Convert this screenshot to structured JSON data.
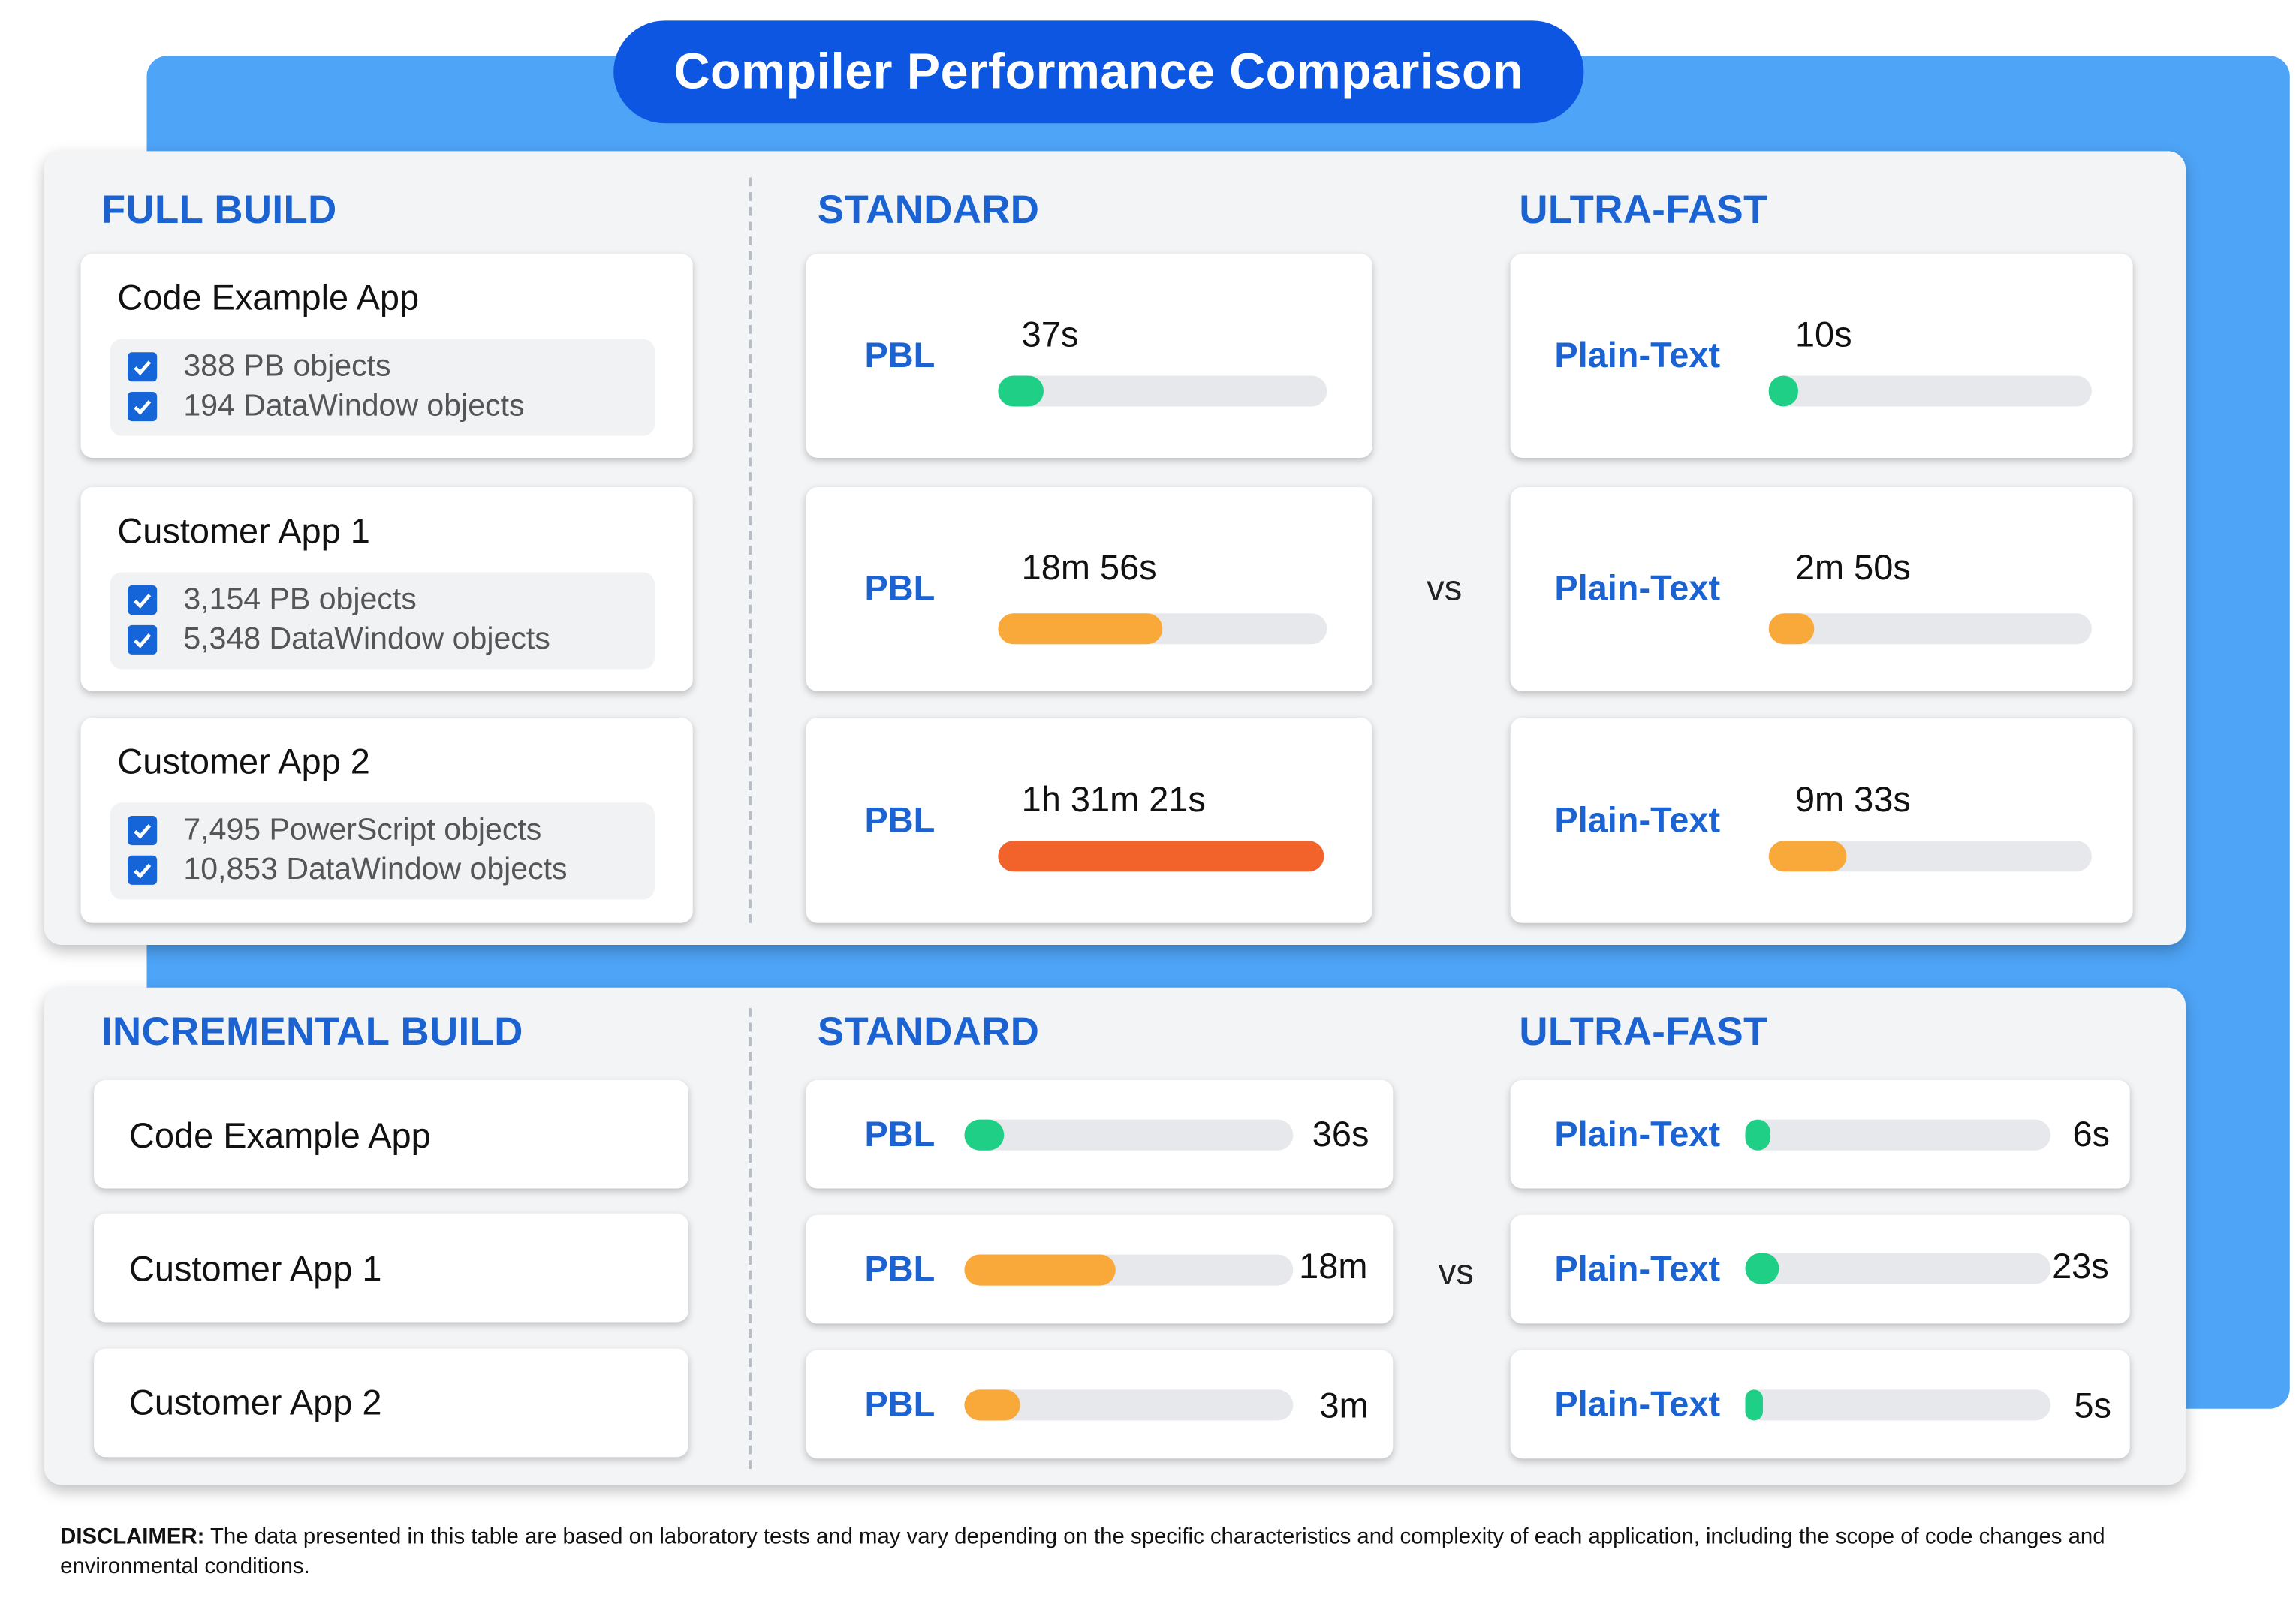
{
  "title": "Compiler Performance Comparison",
  "colors": {
    "green": "#1fcf85",
    "orange": "#f9a93a",
    "red": "#f2622b",
    "blue": "#1b63d3",
    "track": "#e7e8ec"
  },
  "full_build": {
    "header": "FULL BUILD",
    "standard_header": "STANDARD",
    "ultra_header": "ULTRA-FAST",
    "vs": "vs",
    "apps": [
      {
        "name": "Code Example App",
        "objects": [
          "388 PB objects",
          "194 DataWindow objects"
        ]
      },
      {
        "name": "Customer App 1",
        "objects": [
          "3,154 PB objects",
          "5,348 DataWindow objects"
        ]
      },
      {
        "name": "Customer App 2",
        "objects": [
          "7,495 PowerScript objects",
          "10,853 DataWindow objects"
        ]
      }
    ]
  },
  "incremental_build": {
    "header": "INCREMENTAL BUILD",
    "standard_header": "STANDARD",
    "ultra_header": "ULTRA-FAST",
    "vs": "vs",
    "apps": [
      "Code Example App",
      "Customer App 1",
      "Customer App 2"
    ]
  },
  "disclaimer_label": "DISCLAIMER:",
  "disclaimer_text": "The data presented in this table are based on laboratory tests and may vary depending on the specific characteristics and complexity of each application, including the scope of code changes and environmental conditions.",
  "chart_data": [
    {
      "type": "bar",
      "title": "FULL BUILD",
      "categories": [
        "Code Example App",
        "Customer App 1",
        "Customer App 2"
      ],
      "series": [
        {
          "name": "STANDARD",
          "method": "PBL",
          "labels": [
            "37s",
            "18m 56s",
            "1h 31m 21s"
          ],
          "values_seconds": [
            37,
            1136,
            5481
          ],
          "fill_fraction": [
            0.14,
            0.5,
            1.0
          ],
          "colors": [
            "green",
            "orange",
            "red"
          ]
        },
        {
          "name": "ULTRA-FAST",
          "method": "Plain-Text",
          "labels": [
            "10s",
            "2m 50s",
            "9m 33s"
          ],
          "values_seconds": [
            10,
            170,
            573
          ],
          "fill_fraction": [
            0.09,
            0.14,
            0.24
          ],
          "colors": [
            "green",
            "orange",
            "orange"
          ]
        }
      ]
    },
    {
      "type": "bar",
      "title": "INCREMENTAL BUILD",
      "categories": [
        "Code Example App",
        "Customer App 1",
        "Customer App 2"
      ],
      "series": [
        {
          "name": "STANDARD",
          "method": "PBL",
          "labels": [
            "36s",
            "18m",
            "3m"
          ],
          "values_seconds": [
            36,
            1080,
            180
          ],
          "fill_fraction": [
            0.12,
            0.46,
            0.17
          ],
          "colors": [
            "green",
            "orange",
            "orange"
          ]
        },
        {
          "name": "ULTRA-FAST",
          "method": "Plain-Text",
          "labels": [
            "6s",
            "23s",
            "5s"
          ],
          "values_seconds": [
            6,
            23,
            5
          ],
          "fill_fraction": [
            0.08,
            0.11,
            0.06
          ],
          "colors": [
            "green",
            "green",
            "green"
          ]
        }
      ]
    }
  ]
}
